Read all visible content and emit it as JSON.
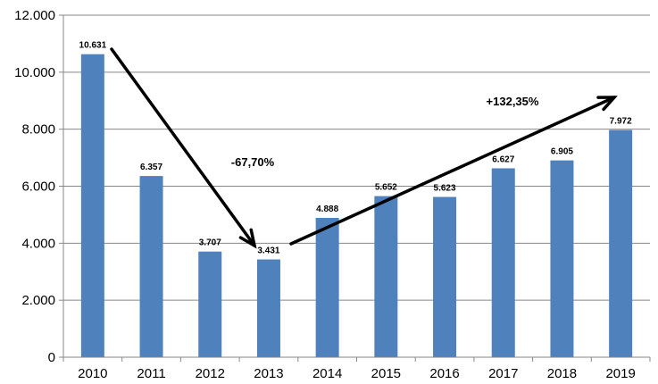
{
  "chart_data": {
    "type": "bar",
    "categories": [
      "2010",
      "2011",
      "2012",
      "2013",
      "2014",
      "2015",
      "2016",
      "2017",
      "2018",
      "2019"
    ],
    "values": [
      10631,
      6357,
      3707,
      3431,
      4888,
      5652,
      5623,
      6627,
      6905,
      7972
    ],
    "value_labels": [
      "10.631",
      "6.357",
      "3.707",
      "3.431",
      "4.888",
      "5.652",
      "5.623",
      "6.627",
      "6.905",
      "7.972"
    ],
    "ylim": [
      0,
      12000
    ],
    "yticks": [
      0,
      2000,
      4000,
      6000,
      8000,
      10000,
      12000
    ],
    "ytick_labels": [
      "0",
      "2.000",
      "4.000",
      "6.000",
      "8.000",
      "10.000",
      "12.000"
    ],
    "grid": true,
    "bar_color": "#4f81bd",
    "title": "",
    "xlabel": "",
    "ylabel": "",
    "annotations": [
      {
        "text": "-67,70%",
        "from": "2010",
        "to": "2013"
      },
      {
        "text": "+132,35%",
        "from": "2013",
        "to": "2019"
      }
    ]
  }
}
